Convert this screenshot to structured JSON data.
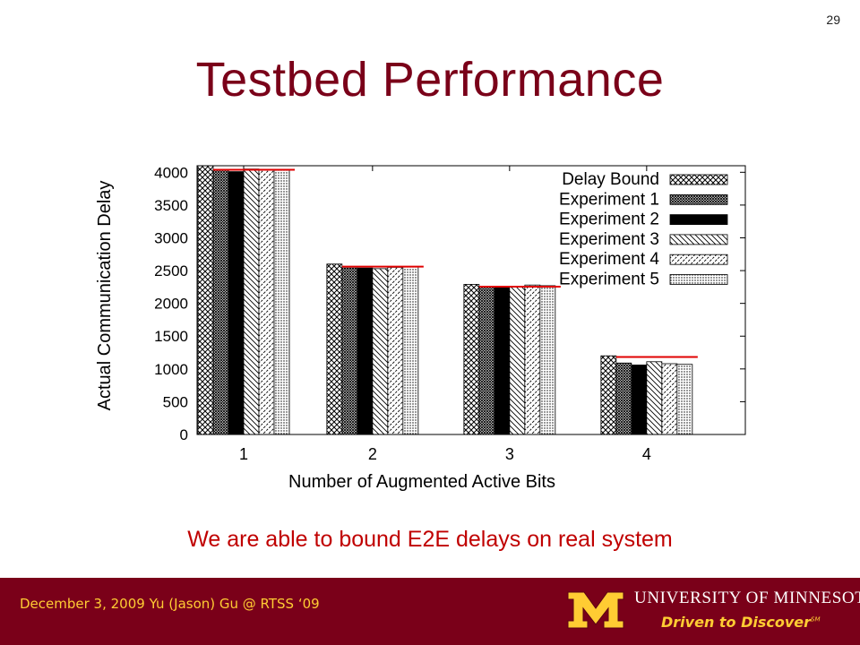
{
  "slide": {
    "number": "29",
    "title": "Testbed Performance",
    "caption": "We are able to bound E2E delays on real system"
  },
  "footer": {
    "text": "December 3, 2009 Yu (Jason) Gu @ RTSS ‘09",
    "logo_text": "UNIVERSITY OF MINNESOTA",
    "tagline": "Driven to Discover",
    "tagline_mark": "SM",
    "colors": {
      "background": "#7a0019",
      "gold": "#ffcc33"
    }
  },
  "chart_data": {
    "type": "bar",
    "title": "",
    "xlabel": "Number of Augmented Active Bits",
    "ylabel": "Actual Communication Delay",
    "categories": [
      "1",
      "2",
      "3",
      "4"
    ],
    "ylim": [
      0,
      4100
    ],
    "yticks": [
      0,
      500,
      1000,
      1500,
      2000,
      2500,
      3000,
      3500,
      4000
    ],
    "legend_position": "top-right",
    "series": [
      {
        "name": "Delay Bound",
        "pattern": "crosshatch",
        "values": [
          4100,
          2600,
          2290,
          1200
        ]
      },
      {
        "name": "Experiment 1",
        "pattern": "dense-crosshatch",
        "values": [
          4030,
          2540,
          2260,
          1090
        ]
      },
      {
        "name": "Experiment 2",
        "pattern": "solid",
        "values": [
          4010,
          2540,
          2240,
          1060
        ]
      },
      {
        "name": "Experiment 3",
        "pattern": "diagonal-down",
        "values": [
          4050,
          2530,
          2260,
          1110
        ]
      },
      {
        "name": "Experiment 4",
        "pattern": "diagonal-up",
        "values": [
          4040,
          2550,
          2280,
          1080
        ]
      },
      {
        "name": "Experiment 5",
        "pattern": "dots",
        "values": [
          4030,
          2560,
          2270,
          1070
        ]
      }
    ],
    "bound_line_color": "#e00000"
  }
}
